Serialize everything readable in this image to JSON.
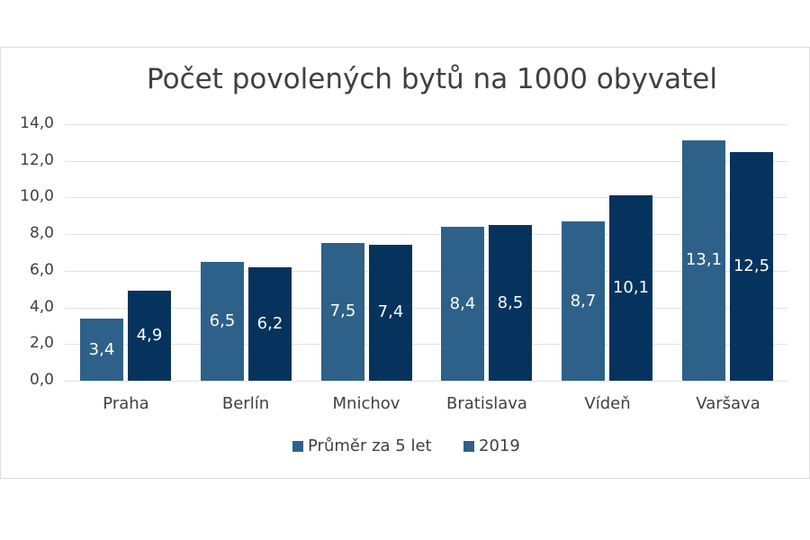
{
  "chart_data": {
    "type": "bar",
    "title": "Počet povolených bytů na 1000 obyvatel",
    "xlabel": "",
    "ylabel": "",
    "categories": [
      "Praha",
      "Berlín",
      "Mnichov",
      "Bratislava",
      "Vídeň",
      "Varšava"
    ],
    "series": [
      {
        "name": "Průměr za 5 let",
        "color": "#2e6189",
        "values": [
          3.4,
          6.5,
          7.5,
          8.4,
          8.7,
          13.1
        ],
        "labels": [
          "3,4",
          "6,5",
          "7,5",
          "8,4",
          "8,7",
          "13,1"
        ]
      },
      {
        "name": "2019",
        "color": "#06335e",
        "values": [
          4.9,
          6.2,
          7.4,
          8.5,
          10.1,
          12.5
        ],
        "labels": [
          "4,9",
          "6,2",
          "7,4",
          "8,5",
          "10,1",
          "12,5"
        ]
      }
    ],
    "ylim": [
      0,
      14
    ],
    "yticks": [
      "0,0",
      "2,0",
      "4,0",
      "6,0",
      "8,0",
      "10,0",
      "12,0",
      "14,0"
    ],
    "ytick_values": [
      0,
      2,
      4,
      6,
      8,
      10,
      12,
      14
    ],
    "grid": true,
    "legend_position": "bottom",
    "data_labels": "inside-center"
  }
}
